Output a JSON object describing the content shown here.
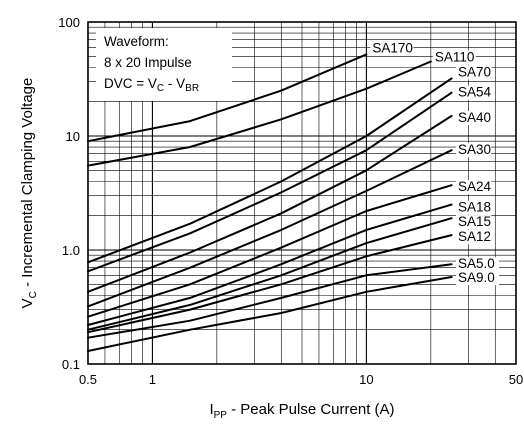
{
  "chart_data": {
    "type": "line",
    "xlabel": "I",
    "xlabel_sub": "PP",
    "xlabel_rest": " - Peak Pulse Current (A)",
    "ylabel": "V",
    "ylabel_sub": "C",
    "ylabel_rest": " - Incremental Clamping Voltage",
    "xscale": "log",
    "yscale": "log",
    "xlim": [
      0.5,
      50
    ],
    "ylim": [
      0.1,
      100
    ],
    "x_tick_labels": [
      "0.5",
      "1",
      "10",
      "50"
    ],
    "x_tick_values": [
      0.5,
      1,
      10,
      50
    ],
    "y_tick_labels": [
      "0.1",
      "1.0",
      "10",
      "100"
    ],
    "y_tick_values": [
      0.1,
      1,
      10,
      100
    ],
    "grid": true,
    "annotation": {
      "line1": "Waveform:",
      "line2": "8 x 20 Impulse",
      "line3_a": "DVC = V",
      "line3_sub1": "C",
      "line3_b": " - V",
      "line3_sub2": "BR"
    },
    "series": [
      {
        "name": "SA170",
        "x": [
          0.5,
          1.5,
          4,
          10
        ],
        "y": [
          9.0,
          13.5,
          25,
          52
        ]
      },
      {
        "name": "SA110",
        "x": [
          0.5,
          1.5,
          4,
          10,
          20
        ],
        "y": [
          5.5,
          8.0,
          14,
          26,
          45
        ]
      },
      {
        "name": "SA70",
        "x": [
          0.5,
          1.5,
          4,
          10,
          25
        ],
        "y": [
          0.78,
          1.7,
          4.0,
          10,
          32
        ]
      },
      {
        "name": "SA54",
        "x": [
          0.5,
          1.5,
          4,
          10,
          25
        ],
        "y": [
          0.65,
          1.4,
          3.2,
          7.5,
          24
        ]
      },
      {
        "name": "SA40",
        "x": [
          0.5,
          1.5,
          4,
          10,
          25
        ],
        "y": [
          0.43,
          0.95,
          2.1,
          5.0,
          15
        ]
      },
      {
        "name": "SA30",
        "x": [
          0.5,
          1.5,
          4,
          10,
          25
        ],
        "y": [
          0.32,
          0.7,
          1.5,
          3.3,
          7.5
        ]
      },
      {
        "name": "SA24",
        "x": [
          0.5,
          1.5,
          4,
          10,
          25
        ],
        "y": [
          0.26,
          0.5,
          1.05,
          2.2,
          3.7
        ]
      },
      {
        "name": "SA18",
        "x": [
          0.5,
          1.5,
          4,
          10,
          25
        ],
        "y": [
          0.22,
          0.38,
          0.75,
          1.5,
          2.5
        ]
      },
      {
        "name": "SA15",
        "x": [
          0.5,
          1.5,
          4,
          10,
          25
        ],
        "y": [
          0.2,
          0.33,
          0.6,
          1.15,
          1.9
        ]
      },
      {
        "name": "SA12",
        "x": [
          0.5,
          1.5,
          4,
          10,
          25
        ],
        "y": [
          0.19,
          0.3,
          0.5,
          0.88,
          1.35
        ]
      },
      {
        "name": "SA5.0",
        "x": [
          0.5,
          1.5,
          4,
          10,
          25
        ],
        "y": [
          0.17,
          0.24,
          0.38,
          0.6,
          0.75
        ]
      },
      {
        "name": "SA9.0",
        "x": [
          0.5,
          1.5,
          4,
          10,
          25
        ],
        "y": [
          0.13,
          0.2,
          0.28,
          0.43,
          0.58
        ]
      }
    ]
  }
}
